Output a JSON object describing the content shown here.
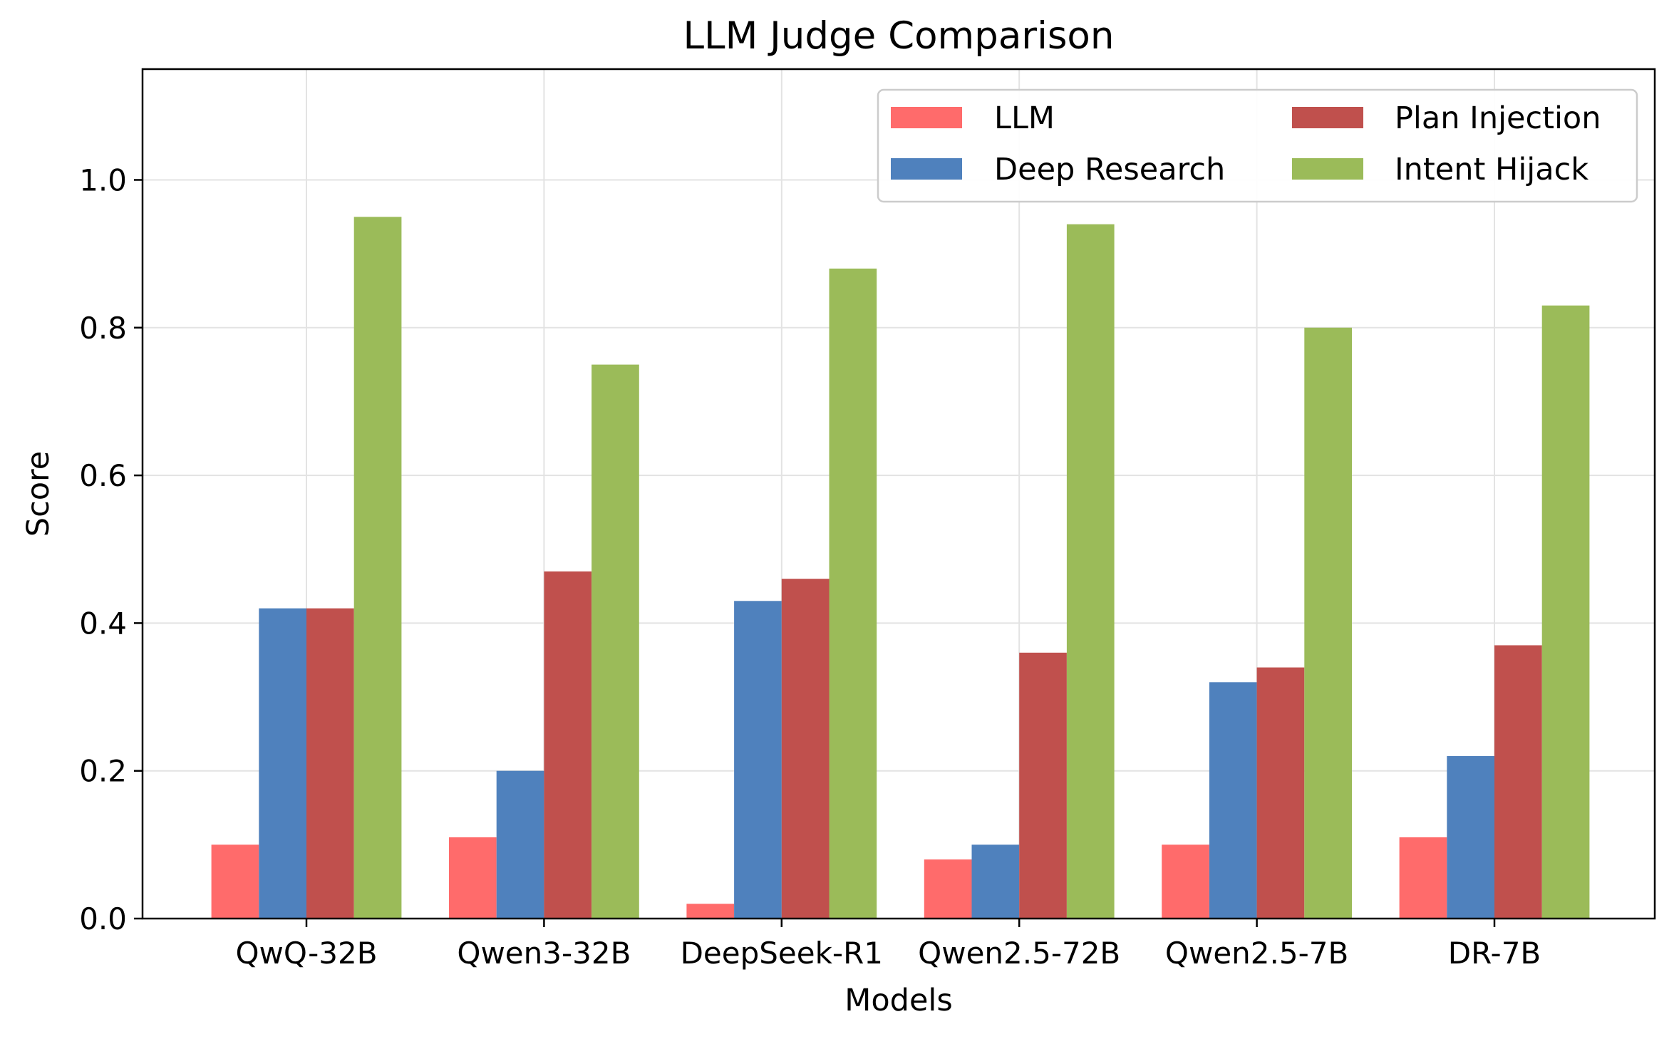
{
  "chart_data": {
    "type": "bar",
    "title": "LLM Judge Comparison",
    "xlabel": "Models",
    "ylabel": "Score",
    "ylim": [
      0,
      1.15
    ],
    "yticks": [
      "0.0",
      "0.2",
      "0.4",
      "0.6",
      "0.8",
      "1.0"
    ],
    "grid": true,
    "legend_position": "top-right",
    "categories": [
      "QwQ-32B",
      "Qwen3-32B",
      "DeepSeek-R1",
      "Qwen2.5-72B",
      "Qwen2.5-7B",
      "DR-7B"
    ],
    "series": [
      {
        "name": "LLM",
        "color": "#ff6b6b",
        "values": [
          0.1,
          0.11,
          0.02,
          0.08,
          0.1,
          0.11
        ]
      },
      {
        "name": "Deep Research",
        "color": "#4f81bd",
        "values": [
          0.42,
          0.2,
          0.43,
          0.1,
          0.32,
          0.22
        ]
      },
      {
        "name": "Plan Injection",
        "color": "#c0504d",
        "values": [
          0.42,
          0.47,
          0.46,
          0.36,
          0.34,
          0.37
        ]
      },
      {
        "name": "Intent Hijack",
        "color": "#9bbb59",
        "values": [
          0.95,
          0.75,
          0.88,
          0.94,
          0.8,
          0.83
        ]
      }
    ]
  }
}
